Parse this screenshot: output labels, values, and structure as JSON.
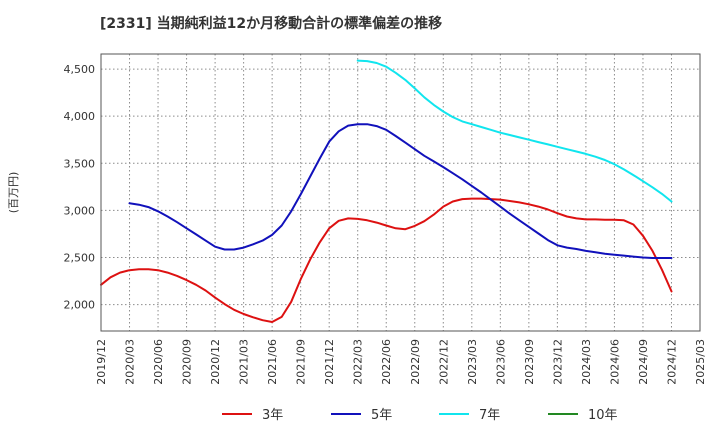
{
  "chart_data": {
    "type": "line",
    "title": "[2331]  当期純利益12か月移動合計の標準偏差の推移",
    "ylabel": "(百万円)",
    "xlabel": "",
    "ylim": [
      1720,
      4660
    ],
    "y_ticks": [
      2000,
      2500,
      3000,
      3500,
      4000,
      4500
    ],
    "y_tick_labels": [
      "2,000",
      "2,500",
      "3,000",
      "3,500",
      "4,000",
      "4,500"
    ],
    "x_ticks": [
      "2019/12",
      "2020/03",
      "2020/06",
      "2020/09",
      "2020/12",
      "2021/03",
      "2021/06",
      "2021/09",
      "2021/12",
      "2022/03",
      "2022/06",
      "2022/09",
      "2022/12",
      "2023/03",
      "2023/06",
      "2023/09",
      "2023/12",
      "2024/03",
      "2024/06",
      "2024/09",
      "2024/12",
      "2025/03"
    ],
    "grid": true,
    "legend_position": "bottom",
    "series": [
      {
        "name": "3年",
        "color": "#dd1111",
        "x": [
          "2019/12",
          "2020/01",
          "2020/02",
          "2020/03",
          "2020/04",
          "2020/05",
          "2020/06",
          "2020/07",
          "2020/08",
          "2020/09",
          "2020/10",
          "2020/11",
          "2020/12",
          "2021/01",
          "2021/02",
          "2021/03",
          "2021/04",
          "2021/05",
          "2021/06",
          "2021/07",
          "2021/08",
          "2021/09",
          "2021/10",
          "2021/11",
          "2021/12",
          "2022/01",
          "2022/02",
          "2022/03",
          "2022/04",
          "2022/05",
          "2022/06",
          "2022/07",
          "2022/08",
          "2022/09",
          "2022/10",
          "2022/11",
          "2022/12",
          "2023/01",
          "2023/02",
          "2023/03",
          "2023/04",
          "2023/05",
          "2023/06",
          "2023/07",
          "2023/08",
          "2023/09",
          "2023/10",
          "2023/11",
          "2023/12",
          "2024/01",
          "2024/02",
          "2024/03",
          "2024/04",
          "2024/05",
          "2024/06",
          "2024/07",
          "2024/08",
          "2024/09",
          "2024/10",
          "2024/11",
          "2024/12"
        ],
        "values": [
          2210,
          2290,
          2340,
          2365,
          2375,
          2375,
          2365,
          2340,
          2305,
          2260,
          2210,
          2150,
          2075,
          2005,
          1945,
          1900,
          1865,
          1835,
          1815,
          1870,
          2030,
          2270,
          2480,
          2660,
          2810,
          2890,
          2915,
          2910,
          2895,
          2870,
          2840,
          2810,
          2800,
          2835,
          2885,
          2955,
          3040,
          3095,
          3120,
          3125,
          3125,
          3120,
          3115,
          3100,
          3085,
          3065,
          3040,
          3010,
          2970,
          2935,
          2915,
          2905,
          2905,
          2900,
          2900,
          2895,
          2850,
          2730,
          2570,
          2370,
          2140
        ]
      },
      {
        "name": "5年",
        "color": "#1111bb",
        "x": [
          "2020/03",
          "2020/04",
          "2020/05",
          "2020/06",
          "2020/07",
          "2020/08",
          "2020/09",
          "2020/10",
          "2020/11",
          "2020/12",
          "2021/01",
          "2021/02",
          "2021/03",
          "2021/04",
          "2021/05",
          "2021/06",
          "2021/07",
          "2021/08",
          "2021/09",
          "2021/10",
          "2021/11",
          "2021/12",
          "2022/01",
          "2022/02",
          "2022/03",
          "2022/04",
          "2022/05",
          "2022/06",
          "2022/07",
          "2022/08",
          "2022/09",
          "2022/10",
          "2022/11",
          "2022/12",
          "2023/01",
          "2023/02",
          "2023/03",
          "2023/04",
          "2023/05",
          "2023/06",
          "2023/07",
          "2023/08",
          "2023/09",
          "2023/10",
          "2023/11",
          "2023/12",
          "2024/01",
          "2024/02",
          "2024/03",
          "2024/04",
          "2024/05",
          "2024/06",
          "2024/07",
          "2024/08",
          "2024/09",
          "2024/10",
          "2024/11",
          "2024/12"
        ],
        "values": [
          3075,
          3060,
          3035,
          2990,
          2935,
          2875,
          2810,
          2745,
          2680,
          2615,
          2585,
          2585,
          2605,
          2640,
          2680,
          2740,
          2840,
          2990,
          3170,
          3360,
          3550,
          3730,
          3840,
          3900,
          3915,
          3915,
          3895,
          3855,
          3790,
          3720,
          3650,
          3580,
          3520,
          3460,
          3395,
          3330,
          3260,
          3190,
          3115,
          3040,
          2965,
          2895,
          2825,
          2755,
          2685,
          2630,
          2605,
          2590,
          2570,
          2555,
          2540,
          2530,
          2520,
          2510,
          2500,
          2495,
          2495,
          2495
        ]
      },
      {
        "name": "7年",
        "color": "#11e5ee",
        "x": [
          "2022/03",
          "2022/04",
          "2022/05",
          "2022/06",
          "2022/07",
          "2022/08",
          "2022/09",
          "2022/10",
          "2022/11",
          "2022/12",
          "2023/01",
          "2023/02",
          "2023/03",
          "2023/04",
          "2023/05",
          "2023/06",
          "2023/07",
          "2023/08",
          "2023/09",
          "2023/10",
          "2023/11",
          "2023/12",
          "2024/01",
          "2024/02",
          "2024/03",
          "2024/04",
          "2024/05",
          "2024/06",
          "2024/07",
          "2024/08",
          "2024/09",
          "2024/10",
          "2024/11",
          "2024/12"
        ],
        "values": [
          4590,
          4585,
          4565,
          4525,
          4460,
          4385,
          4295,
          4200,
          4120,
          4050,
          3990,
          3945,
          3915,
          3885,
          3855,
          3825,
          3800,
          3775,
          3750,
          3725,
          3700,
          3675,
          3650,
          3625,
          3600,
          3570,
          3535,
          3490,
          3435,
          3375,
          3310,
          3245,
          3175,
          3095
        ]
      },
      {
        "name": "10年",
        "color": "#228822",
        "x": [],
        "values": []
      }
    ]
  }
}
